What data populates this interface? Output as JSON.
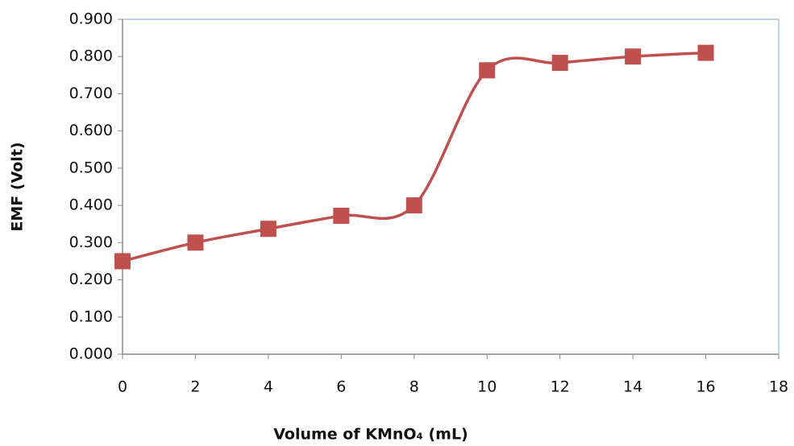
{
  "chart_data": {
    "type": "line",
    "y_label": "EMF (Volt)",
    "x_label": "Volume of KMnO₄ (mL)",
    "x": [
      0,
      2,
      4,
      6,
      8,
      10,
      12,
      14,
      16
    ],
    "series": [
      {
        "name": "EMF",
        "color": "#c0504d",
        "values": [
          0.25,
          0.3,
          0.337,
          0.372,
          0.4,
          0.763,
          0.783,
          0.8,
          0.81
        ]
      }
    ],
    "xlim": [
      0,
      18
    ],
    "xticks": [
      0,
      2,
      4,
      6,
      8,
      10,
      12,
      14,
      16,
      18
    ],
    "ylim": [
      0,
      0.9
    ],
    "yticks": [
      {
        "value": 0,
        "label": "0.000"
      },
      {
        "value": 0.1,
        "label": "0.100"
      },
      {
        "value": 0.2,
        "label": "0.200"
      },
      {
        "value": 0.3,
        "label": "0.300"
      },
      {
        "value": 0.4,
        "label": "0.400"
      },
      {
        "value": 0.5,
        "label": "0.500"
      },
      {
        "value": 0.6,
        "label": "0.600"
      },
      {
        "value": 0.7,
        "label": "0.700"
      },
      {
        "value": 0.8,
        "label": "0.800"
      },
      {
        "value": 0.9,
        "label": "0.900"
      }
    ],
    "smooth": true,
    "marker": "square"
  }
}
